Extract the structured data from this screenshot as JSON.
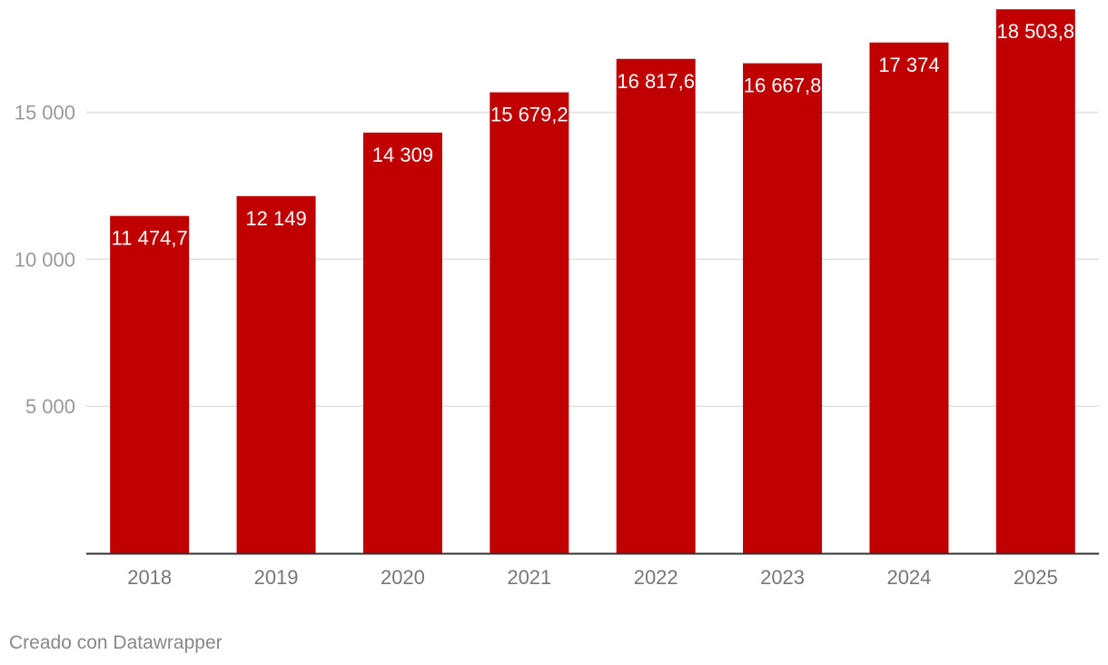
{
  "chart_data": {
    "type": "bar",
    "categories": [
      "2018",
      "2019",
      "2020",
      "2021",
      "2022",
      "2023",
      "2024",
      "2025"
    ],
    "values": [
      11474.7,
      12149,
      14309,
      15679.2,
      16817.6,
      16667.8,
      17374,
      18503.8
    ],
    "data_labels": [
      "11 474,7",
      "12 149",
      "14 309",
      "15 679,2",
      "16 817,6",
      "16 667,8",
      "17 374",
      "18 503,8"
    ],
    "y_ticks": [
      5000,
      10000,
      15000
    ],
    "y_tick_labels": [
      "5 000",
      "10 000",
      "15 000"
    ],
    "ylim": [
      0,
      18500
    ],
    "grid": true,
    "bar_color": "#c00000",
    "title": "",
    "xlabel": "",
    "ylabel": ""
  },
  "footer": {
    "credit": "Creado con Datawrapper"
  },
  "colors": {
    "bar": "#c00000",
    "gridline": "#e0e0e0",
    "axis": "#333333",
    "tick_text": "#999999",
    "category_text": "#777777",
    "label_text": "#ffffff"
  }
}
